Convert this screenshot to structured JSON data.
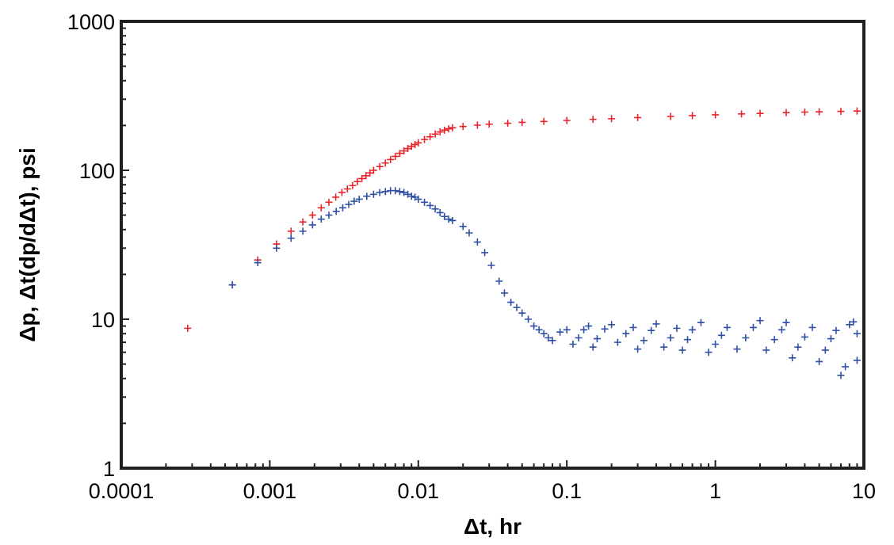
{
  "chart_data": {
    "type": "scatter",
    "title": "",
    "xlabel": "Δt, hr",
    "ylabel": "Δp, Δt(dp/dΔt), psi",
    "x_scale": "log",
    "y_scale": "log",
    "xlim": [
      0.0001,
      10
    ],
    "ylim": [
      1,
      1000
    ],
    "x_ticks": [
      "0.0001",
      "0.001",
      "0.01",
      "0.1",
      "1",
      "10"
    ],
    "y_ticks": [
      "1",
      "10",
      "100",
      "1000"
    ],
    "grid": false,
    "marker": "+",
    "series": [
      {
        "color": "#e8232a",
        "points": [
          [
            0.00028,
            8.7
          ],
          [
            0.00056,
            17
          ],
          [
            0.00083,
            25
          ],
          [
            0.00111,
            32
          ],
          [
            0.00139,
            39
          ],
          [
            0.00167,
            45
          ],
          [
            0.00194,
            50
          ],
          [
            0.00222,
            56
          ],
          [
            0.0025,
            61
          ],
          [
            0.00278,
            66
          ],
          [
            0.00306,
            71
          ],
          [
            0.00333,
            75
          ],
          [
            0.00361,
            79
          ],
          [
            0.00389,
            84
          ],
          [
            0.00417,
            88
          ],
          [
            0.00444,
            92
          ],
          [
            0.00472,
            96
          ],
          [
            0.005,
            100
          ],
          [
            0.0055,
            106
          ],
          [
            0.006,
            112
          ],
          [
            0.0065,
            118
          ],
          [
            0.007,
            124
          ],
          [
            0.0075,
            130
          ],
          [
            0.008,
            135
          ],
          [
            0.0085,
            140
          ],
          [
            0.009,
            145
          ],
          [
            0.0095,
            149
          ],
          [
            0.01,
            153
          ],
          [
            0.011,
            161
          ],
          [
            0.012,
            168
          ],
          [
            0.013,
            175
          ],
          [
            0.014,
            181
          ],
          [
            0.015,
            186
          ],
          [
            0.016,
            190
          ],
          [
            0.017,
            193
          ],
          [
            0.02,
            197
          ],
          [
            0.025,
            201
          ],
          [
            0.03,
            204
          ],
          [
            0.04,
            207
          ],
          [
            0.05,
            210
          ],
          [
            0.07,
            213
          ],
          [
            0.1,
            216
          ],
          [
            0.15,
            220
          ],
          [
            0.2,
            222
          ],
          [
            0.3,
            226
          ],
          [
            0.5,
            230
          ],
          [
            0.7,
            233
          ],
          [
            1,
            236
          ],
          [
            1.5,
            239
          ],
          [
            2,
            241
          ],
          [
            3,
            244
          ],
          [
            4,
            246
          ],
          [
            5,
            247
          ],
          [
            7,
            249
          ],
          [
            9,
            250
          ]
        ]
      },
      {
        "color": "#2e4fa3",
        "points": [
          [
            0.00056,
            17
          ],
          [
            0.00083,
            24
          ],
          [
            0.00111,
            30
          ],
          [
            0.00139,
            35
          ],
          [
            0.00167,
            39
          ],
          [
            0.00194,
            43
          ],
          [
            0.00222,
            47
          ],
          [
            0.0025,
            50
          ],
          [
            0.0028,
            53
          ],
          [
            0.0031,
            56
          ],
          [
            0.0034,
            59
          ],
          [
            0.0037,
            62
          ],
          [
            0.004,
            64
          ],
          [
            0.0045,
            67
          ],
          [
            0.005,
            69
          ],
          [
            0.0055,
            71
          ],
          [
            0.006,
            72
          ],
          [
            0.0065,
            73
          ],
          [
            0.007,
            73
          ],
          [
            0.0075,
            72
          ],
          [
            0.008,
            71
          ],
          [
            0.0085,
            69
          ],
          [
            0.009,
            67
          ],
          [
            0.0095,
            66
          ],
          [
            0.01,
            64
          ],
          [
            0.011,
            61
          ],
          [
            0.012,
            58
          ],
          [
            0.013,
            55
          ],
          [
            0.014,
            52
          ],
          [
            0.015,
            49
          ],
          [
            0.016,
            47
          ],
          [
            0.017,
            46
          ],
          [
            0.02,
            42
          ],
          [
            0.022,
            38
          ],
          [
            0.025,
            33
          ],
          [
            0.028,
            28
          ],
          [
            0.031,
            23
          ],
          [
            0.035,
            18
          ],
          [
            0.038,
            15
          ],
          [
            0.042,
            13
          ],
          [
            0.046,
            12
          ],
          [
            0.05,
            11
          ],
          [
            0.055,
            10
          ],
          [
            0.06,
            9
          ],
          [
            0.065,
            8.5
          ],
          [
            0.07,
            8
          ],
          [
            0.075,
            7.5
          ],
          [
            0.08,
            7.2
          ],
          [
            0.09,
            8.2
          ],
          [
            0.1,
            8.5
          ],
          [
            0.11,
            6.8
          ],
          [
            0.12,
            7.5
          ],
          [
            0.13,
            8.5
          ],
          [
            0.14,
            9
          ],
          [
            0.15,
            6.5
          ],
          [
            0.16,
            7.4
          ],
          [
            0.18,
            8.6
          ],
          [
            0.2,
            9.2
          ],
          [
            0.22,
            7
          ],
          [
            0.25,
            8
          ],
          [
            0.28,
            8.8
          ],
          [
            0.3,
            6.3
          ],
          [
            0.33,
            7.2
          ],
          [
            0.37,
            8.4
          ],
          [
            0.4,
            9.3
          ],
          [
            0.45,
            6.5
          ],
          [
            0.5,
            7.5
          ],
          [
            0.55,
            8.7
          ],
          [
            0.6,
            6.2
          ],
          [
            0.65,
            7.3
          ],
          [
            0.7,
            8.5
          ],
          [
            0.8,
            9.5
          ],
          [
            0.9,
            6
          ],
          [
            1,
            6.8
          ],
          [
            1.1,
            7.8
          ],
          [
            1.2,
            8.8
          ],
          [
            1.4,
            6.3
          ],
          [
            1.6,
            7.5
          ],
          [
            1.8,
            8.8
          ],
          [
            2,
            9.8
          ],
          [
            2.2,
            6.2
          ],
          [
            2.5,
            7.3
          ],
          [
            2.8,
            8.5
          ],
          [
            3,
            9.5
          ],
          [
            3.3,
            5.5
          ],
          [
            3.6,
            6.5
          ],
          [
            4,
            7.6
          ],
          [
            4.5,
            8.8
          ],
          [
            5,
            5.2
          ],
          [
            5.5,
            6.2
          ],
          [
            6,
            7.4
          ],
          [
            6.5,
            8.4
          ],
          [
            7,
            4.2
          ],
          [
            7.5,
            4.8
          ],
          [
            8,
            9.2
          ],
          [
            8.5,
            9.6
          ],
          [
            9,
            5.3
          ],
          [
            9,
            8
          ]
        ]
      }
    ]
  }
}
